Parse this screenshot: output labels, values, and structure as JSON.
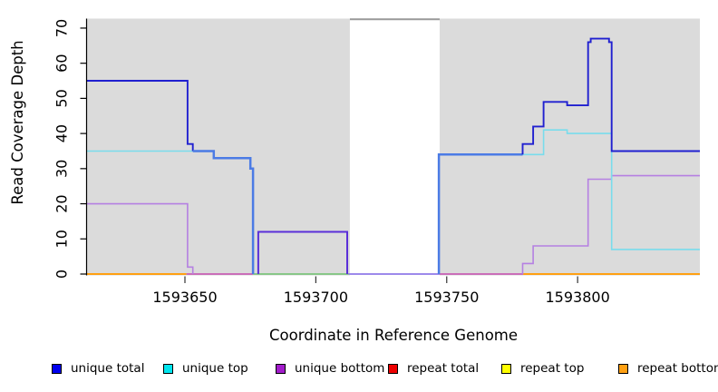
{
  "chart_data": {
    "type": "line",
    "title": "",
    "xlabel": "Coordinate in Reference Genome",
    "ylabel": "Read Coverage Depth",
    "xlim": [
      1593612.6,
      1593846.7
    ],
    "ylim": [
      0,
      72.7
    ],
    "x_ticks": [
      {
        "value": 1593650,
        "label": "1593650"
      },
      {
        "value": 1593700,
        "label": "1593700"
      },
      {
        "value": 1593750,
        "label": "1593750"
      },
      {
        "value": 1593800,
        "label": "1593800"
      }
    ],
    "y_ticks": [
      {
        "value": 0,
        "label": "0"
      },
      {
        "value": 10,
        "label": "10"
      },
      {
        "value": 20,
        "label": "20"
      },
      {
        "value": 30,
        "label": "30"
      },
      {
        "value": 40,
        "label": "40"
      },
      {
        "value": 50,
        "label": "50"
      },
      {
        "value": 60,
        "label": "60"
      },
      {
        "value": 70,
        "label": "70"
      }
    ],
    "grid": false,
    "legend_position": "bottom",
    "background": {
      "plot_bg": "#FFFFFF",
      "shade_color": "#DBDBDB",
      "shaded_regions_x": [
        [
          1593612.6,
          1593713.0
        ],
        [
          1593747.3,
          1593846.7
        ]
      ],
      "gap_region_x": [
        1593713.0,
        1593747.3
      ],
      "gap_top_line_color": "#999999"
    },
    "series": [
      {
        "name": "unique total",
        "color": "#0000EE",
        "steps": [
          [
            1593612.6,
            55
          ],
          [
            1593651,
            37
          ],
          [
            1593653,
            35
          ],
          [
            1593661,
            33
          ],
          [
            1593675,
            30
          ],
          [
            1593676,
            0
          ],
          [
            1593678,
            12
          ],
          [
            1593712,
            0
          ],
          [
            1593747,
            34
          ],
          [
            1593779,
            37
          ],
          [
            1593783,
            42
          ],
          [
            1593787,
            49
          ],
          [
            1593796,
            48
          ],
          [
            1593804,
            66
          ],
          [
            1593805,
            67
          ],
          [
            1593812,
            66
          ],
          [
            1593813,
            35
          ],
          [
            1593846.7,
            35
          ]
        ]
      },
      {
        "name": "unique top",
        "color": "#00E5EE",
        "steps": [
          [
            1593612.6,
            35
          ],
          [
            1593661,
            33
          ],
          [
            1593675,
            30
          ],
          [
            1593676,
            0
          ],
          [
            1593747,
            34
          ],
          [
            1593787,
            41
          ],
          [
            1593796,
            40
          ],
          [
            1593813,
            7
          ],
          [
            1593846.7,
            7
          ]
        ]
      },
      {
        "name": "unique bottom",
        "color": "#A21CCB",
        "steps": [
          [
            1593612.6,
            20
          ],
          [
            1593651,
            2
          ],
          [
            1593653,
            0
          ],
          [
            1593678,
            12
          ],
          [
            1593712,
            0
          ],
          [
            1593779,
            3
          ],
          [
            1593783,
            8
          ],
          [
            1593804,
            27
          ],
          [
            1593813,
            28
          ],
          [
            1593846.7,
            28
          ]
        ]
      },
      {
        "name": "repeat total",
        "color": "#EE0000",
        "steps": [
          [
            1593612.6,
            0
          ],
          [
            1593846.7,
            0
          ]
        ]
      },
      {
        "name": "repeat top",
        "color": "#FFFF00",
        "steps": [
          [
            1593612.6,
            0
          ],
          [
            1593846.7,
            0
          ]
        ]
      },
      {
        "name": "repeat bottom",
        "color": "#FFA013",
        "steps": [
          [
            1593612.6,
            0
          ],
          [
            1593846.7,
            0
          ]
        ]
      }
    ],
    "display_polylines": [
      {
        "name": "zero-repeat-bottom-left",
        "color": "#FFA013",
        "width": 2,
        "points": [
          [
            1593612.6,
            0
          ],
          [
            1593650.6,
            0
          ]
        ]
      },
      {
        "name": "zero-blend-red-purple-left",
        "color": "#C85FB4",
        "width": 1.8,
        "points": [
          [
            1593650.6,
            0
          ],
          [
            1593676,
            0
          ]
        ]
      },
      {
        "name": "zero-blend-cyan-yellow",
        "color": "#7CC47C",
        "width": 1.8,
        "points": [
          [
            1593676,
            0
          ],
          [
            1593712.5,
            0
          ]
        ]
      },
      {
        "name": "zero-blend-blue-purple-gap",
        "color": "#8F7AE8",
        "width": 1.8,
        "points": [
          [
            1593712.5,
            0
          ],
          [
            1593747.3,
            0
          ]
        ]
      },
      {
        "name": "zero-blend-red-purple-right",
        "color": "#C85FB4",
        "width": 1.8,
        "points": [
          [
            1593747.3,
            0
          ],
          [
            1593779.2,
            0
          ]
        ]
      },
      {
        "name": "zero-repeat-bottom-right",
        "color": "#FFA013",
        "width": 2,
        "points": [
          [
            1593779.2,
            0
          ],
          [
            1593846.7,
            0
          ]
        ]
      },
      {
        "name": "unique-bottom-left",
        "color": "#B580E2",
        "width": 1.6,
        "points": [
          [
            1593612.6,
            20
          ],
          [
            1593651,
            20
          ],
          [
            1593651,
            2
          ],
          [
            1593653,
            2
          ],
          [
            1593653,
            0
          ]
        ]
      },
      {
        "name": "unique-top-left",
        "color": "#79DCEC",
        "width": 1.6,
        "points": [
          [
            1593612.6,
            35
          ],
          [
            1593653,
            35
          ]
        ]
      },
      {
        "name": "unique-total-left",
        "color": "#2020D0",
        "width": 1.9,
        "points": [
          [
            1593612.6,
            55
          ],
          [
            1593651,
            55
          ],
          [
            1593651,
            37
          ],
          [
            1593653,
            37
          ],
          [
            1593653,
            35
          ]
        ]
      },
      {
        "name": "unique-total-top-merged-left",
        "color": "#4B7BE5",
        "width": 2.5,
        "points": [
          [
            1593653,
            35
          ],
          [
            1593661,
            35
          ],
          [
            1593661,
            33
          ],
          [
            1593675,
            33
          ],
          [
            1593675,
            30
          ],
          [
            1593676,
            30
          ],
          [
            1593676,
            0
          ]
        ]
      },
      {
        "name": "unique-total-bottom-box",
        "color": "#5A2FD8",
        "width": 2,
        "points": [
          [
            1593678,
            0
          ],
          [
            1593678,
            12
          ],
          [
            1593712,
            12
          ],
          [
            1593712,
            0
          ]
        ]
      },
      {
        "name": "unique-total-top-merged-right",
        "color": "#4B7BE5",
        "width": 2.5,
        "points": [
          [
            1593747,
            0
          ],
          [
            1593747,
            34
          ],
          [
            1593779,
            34
          ]
        ]
      },
      {
        "name": "unique-bottom-right",
        "color": "#B580E2",
        "width": 1.6,
        "points": [
          [
            1593779,
            0
          ],
          [
            1593779,
            3
          ],
          [
            1593783,
            3
          ],
          [
            1593783,
            8
          ],
          [
            1593804,
            8
          ],
          [
            1593804,
            27
          ],
          [
            1593813,
            27
          ],
          [
            1593813,
            28
          ],
          [
            1593846.7,
            28
          ]
        ]
      },
      {
        "name": "unique-top-right",
        "color": "#79DCEC",
        "width": 1.6,
        "points": [
          [
            1593779,
            34
          ],
          [
            1593787,
            34
          ],
          [
            1593787,
            41
          ],
          [
            1593796,
            41
          ],
          [
            1593796,
            40
          ],
          [
            1593813,
            40
          ],
          [
            1593813,
            7
          ],
          [
            1593846.7,
            7
          ]
        ]
      },
      {
        "name": "unique-total-right",
        "color": "#2020D0",
        "width": 1.9,
        "points": [
          [
            1593779,
            34
          ],
          [
            1593779,
            37
          ],
          [
            1593783,
            37
          ],
          [
            1593783,
            42
          ],
          [
            1593787,
            42
          ],
          [
            1593787,
            49
          ],
          [
            1593796,
            49
          ],
          [
            1593796,
            48
          ],
          [
            1593804,
            48
          ],
          [
            1593804,
            66
          ],
          [
            1593805,
            66
          ],
          [
            1593805,
            67
          ],
          [
            1593812,
            67
          ],
          [
            1593812,
            66
          ],
          [
            1593813,
            66
          ],
          [
            1593813,
            35
          ],
          [
            1593846.7,
            35
          ]
        ]
      }
    ],
    "legend": [
      {
        "label": "unique total",
        "color": "#0000EE"
      },
      {
        "label": "unique top",
        "color": "#00E5EE"
      },
      {
        "label": "unique bottom",
        "color": "#A21CCB"
      },
      {
        "label": "repeat total",
        "color": "#EE0000"
      },
      {
        "label": "repeat top",
        "color": "#FFFF00"
      },
      {
        "label": "repeat bottom",
        "color": "#FFA013"
      }
    ]
  }
}
